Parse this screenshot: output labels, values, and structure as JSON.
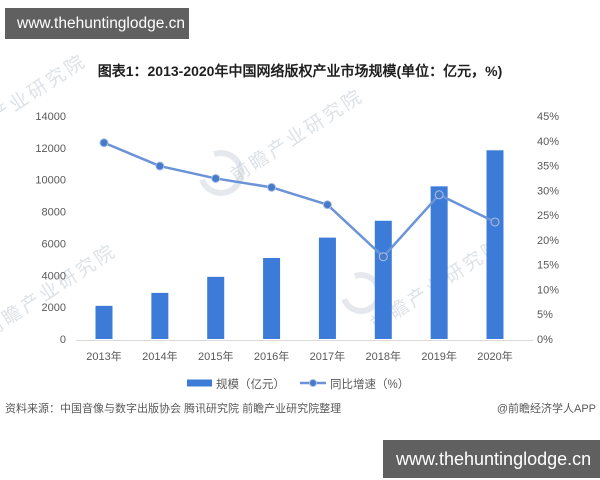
{
  "top_bar": {
    "text": "www.thehuntinglodge.cn"
  },
  "bottom_bar": {
    "text": "www.thehuntinglodge.cn"
  },
  "chart_data": {
    "type": "combo-bar-line",
    "title": "图表1：2013-2020年中国网络版权产业市场规模(单位：亿元，%)",
    "categories": [
      "2013年",
      "2014年",
      "2015年",
      "2016年",
      "2017年",
      "2018年",
      "2019年",
      "2020年"
    ],
    "series": [
      {
        "name": "规模（亿元）",
        "type": "bar",
        "axis": "left",
        "values": [
          2082,
          2894,
          3903,
          5086,
          6365,
          7423,
          9584,
          11847
        ]
      },
      {
        "name": "同比增速（%）",
        "type": "line",
        "axis": "right",
        "values": [
          39.6,
          34.9,
          32.4,
          30.6,
          27.1,
          16.6,
          29.1,
          23.6
        ]
      }
    ],
    "left_axis": {
      "min": 0,
      "max": 14000,
      "step": 2000,
      "ticks": [
        "0",
        "2000",
        "4000",
        "6000",
        "8000",
        "10000",
        "12000",
        "14000"
      ]
    },
    "right_axis": {
      "min": 0,
      "max": 45,
      "step": 5,
      "suffix": "%",
      "ticks": [
        "0%",
        "5%",
        "10%",
        "15%",
        "20%",
        "25%",
        "30%",
        "35%",
        "40%",
        "45%"
      ]
    },
    "legend_position": "bottom",
    "grid": false
  },
  "footer": {
    "source": "资料来源：中国音像与数字出版协会 腾讯研究院 前瞻产业研究院整理",
    "credit": "@前瞻经济学人APP"
  },
  "watermark": {
    "text": "前瞻产业研究院"
  },
  "colors": {
    "bar": "#3c7cd8",
    "line": "#6a93d8",
    "marker": "#477ac9",
    "marker_ring": "#a8c0e8",
    "axis_text": "#595959",
    "watermark_bar": "#606060"
  }
}
